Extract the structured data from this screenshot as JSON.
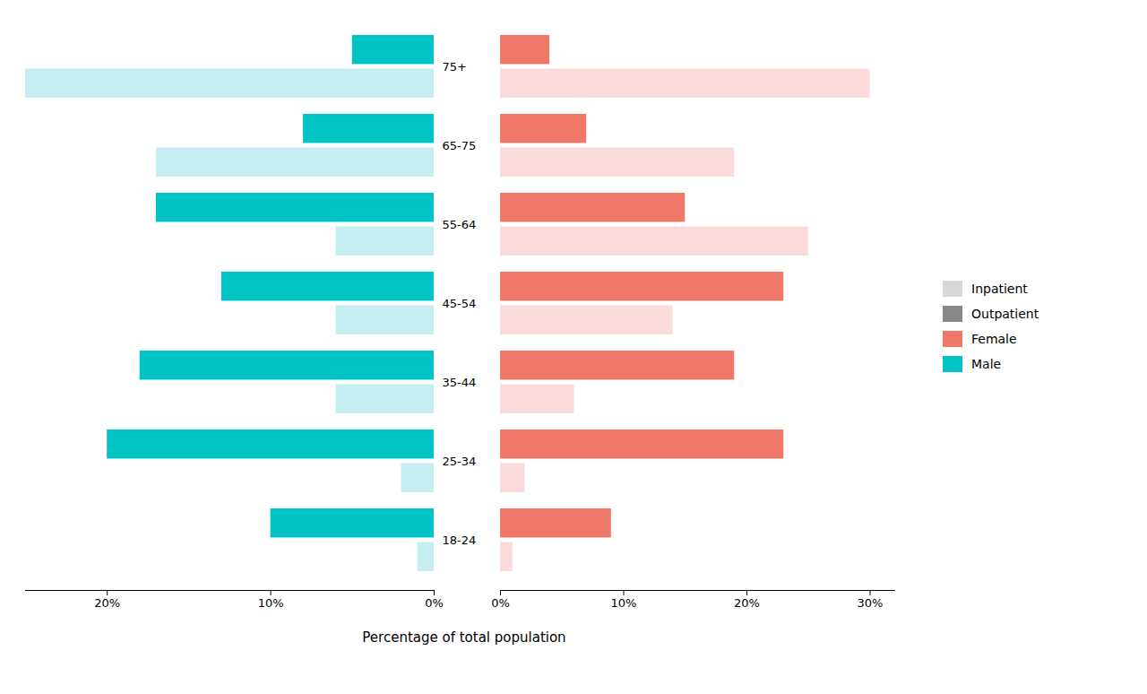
{
  "chart_data": {
    "type": "bar",
    "orientation": "horizontal",
    "xlabel": "Percentage of total population",
    "categories": [
      "18-24",
      "25-34",
      "35-44",
      "45-54",
      "55-64",
      "65-75",
      "75+"
    ],
    "grid": false,
    "legend": "right",
    "legend_entries": [
      {
        "name": "Inpatient",
        "color": "#D8D8D8"
      },
      {
        "name": "Outpatient",
        "color": "#888888"
      },
      {
        "name": "Female",
        "color": "#F07868"
      },
      {
        "name": "Male",
        "color": "#00C4C4"
      }
    ],
    "panels": [
      {
        "series": [
          {
            "color": "#00C4C4",
            "values": [
              10,
              20,
              18,
              13,
              17,
              8,
              5
            ]
          },
          {
            "color": "#C5EEF0",
            "values": [
              1,
              2,
              6,
              6,
              6,
              17,
              25
            ]
          }
        ],
        "xlim": [
          25,
          0
        ],
        "xticks": [
          {
            "value": 20,
            "label": "20%"
          },
          {
            "value": 10,
            "label": "10%"
          },
          {
            "value": 0,
            "label": "0%"
          }
        ]
      },
      {
        "series": [
          {
            "color": "#F07868",
            "values": [
              9,
              23,
              19,
              23,
              15,
              7,
              4
            ]
          },
          {
            "color": "#FADADB",
            "values": [
              1,
              2,
              6,
              14,
              25,
              19,
              30
            ]
          }
        ],
        "xlim": [
          0,
          32
        ],
        "xticks": [
          {
            "value": 0,
            "label": "0%"
          },
          {
            "value": 10,
            "label": "10%"
          },
          {
            "value": 20,
            "label": "20%"
          },
          {
            "value": 30,
            "label": "30%"
          }
        ]
      }
    ]
  }
}
